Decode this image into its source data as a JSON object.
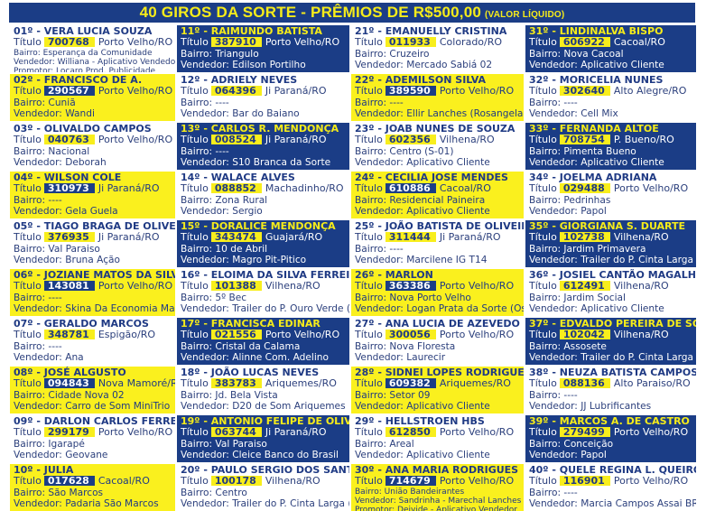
{
  "header": {
    "title": "40 GIROS DA SORTE - PRÊMIOS DE R$500,00",
    "subtitle": "(VALOR LÍQUIDO)"
  },
  "labels": {
    "titulo": "Título",
    "bairro": "Bairro:",
    "vendedor": "Vendedor:",
    "promotor": "Promotor:"
  },
  "colors": {
    "blue": "#1b3d86",
    "yellow": "#faf01e",
    "white": "#ffffff"
  },
  "winners": [
    {
      "rank": "01º - ",
      "name": "VERA LUCIA SOUZA",
      "titulo": "700768",
      "city": "Porto Velho/RO",
      "bairro": "Esperança da Comunidade",
      "vendedor": "Williana - Aplicativo Vendedor",
      "promotor": "Locaro Prod. Publicidade",
      "theme": "white"
    },
    {
      "rank": "02º - ",
      "name": "FRANCISCO DE A.",
      "titulo": "290567",
      "city": "Porto Velho/RO",
      "bairro": "Cuniã",
      "vendedor": "Wandi",
      "theme": "yellow"
    },
    {
      "rank": "03º - ",
      "name": "OLIVALDO CAMPOS",
      "titulo": "040763",
      "city": "Porto Velho/RO",
      "bairro": "Nacional",
      "vendedor": "Deborah",
      "theme": "white"
    },
    {
      "rank": "04º - ",
      "name": "WILSON COLE",
      "titulo": "310973",
      "city": "Ji Paraná/RO",
      "bairro": "----",
      "vendedor": "Gela Guela",
      "theme": "yellow"
    },
    {
      "rank": "05º - ",
      "name": "TIAGO BRAGA DE OLIVEIRA",
      "titulo": "376935",
      "city": "Ji Paraná/RO",
      "bairro": "Val Paraiso",
      "vendedor": "Bruna Ação",
      "theme": "white"
    },
    {
      "rank": "06º - ",
      "name": "JOZIANE MATOS DA SILVA",
      "titulo": "143081",
      "city": "Porto Velho/RO",
      "bairro": "----",
      "vendedor": "Skina Da Economia Maiara",
      "theme": "yellow"
    },
    {
      "rank": "07º - ",
      "name": "GERALDO MARCOS",
      "titulo": "348781",
      "city": "Espigão/RO",
      "bairro": "----",
      "vendedor": "Ana",
      "theme": "white"
    },
    {
      "rank": "08º - ",
      "name": "JOSÉ ALGUSTO",
      "titulo": "094843",
      "city": "Nova Mamoré/RO",
      "bairro": "Cidade Nova 02",
      "vendedor": "Carro de Som MiniTrio",
      "theme": "yellow"
    },
    {
      "rank": "09º - ",
      "name": "DARLON CARLOS FERREIRA",
      "titulo": "299179",
      "city": "Porto Velho/RO",
      "bairro": "Igarapé",
      "vendedor": "Geovane",
      "theme": "white"
    },
    {
      "rank": "10º - ",
      "name": "JULIA",
      "titulo": "017628",
      "city": "Cacoal/RO",
      "bairro": "São Marcos",
      "vendedor": "Padaria São Marcos",
      "theme": "yellow"
    },
    {
      "rank": "11º - ",
      "name": "RAIMUNDO BATISTA",
      "titulo": "387910",
      "city": "Porto Velho/RO",
      "bairro": "Triangulo",
      "vendedor": "Edilson Portilho",
      "theme": "blue"
    },
    {
      "rank": "12º - ",
      "name": "ADRIELY NEVES",
      "titulo": "064396",
      "city": "Ji Paraná/RO",
      "bairro": "----",
      "vendedor": "Bar do Baiano",
      "theme": "white"
    },
    {
      "rank": "13º - ",
      "name": "CARLOS R. MENDONÇA",
      "titulo": "008524",
      "city": "Ji Paraná/RO",
      "bairro": "----",
      "vendedor": "S10 Branca da Sorte",
      "theme": "blue"
    },
    {
      "rank": "14º - ",
      "name": "WALACE ALVES",
      "titulo": "088852",
      "city": "Machadinho/RO",
      "bairro": "Zona Rural",
      "vendedor": "Sergio",
      "theme": "white"
    },
    {
      "rank": "15º - ",
      "name": "DORALICE MENDONÇA",
      "titulo": "343474",
      "city": "Guajará/RO",
      "bairro": "10 de Abril",
      "vendedor": "Magro Pit-Pitico",
      "theme": "blue"
    },
    {
      "rank": "16º - ",
      "name": "ELOIMA DA SILVA FERREIRA",
      "titulo": "101388",
      "city": "Vilhena/RO",
      "bairro": "5º Bec",
      "vendedor": "Trailer do P. Ouro Verde ( Yaris)",
      "theme": "white"
    },
    {
      "rank": "17º - ",
      "name": "FRANCISCA EDINAR",
      "titulo": "021556",
      "city": "Porto Velho/RO",
      "bairro": "Cristal da Calama",
      "vendedor": "Alinne Com. Adelino",
      "theme": "blue"
    },
    {
      "rank": "18º - ",
      "name": "JOÃO LUCAS NEVES",
      "titulo": "383783",
      "city": "Ariquemes/RO",
      "bairro": "Jd. Bela Vista",
      "vendedor": "D20 de Som Ariquemes",
      "theme": "white"
    },
    {
      "rank": "19º - ",
      "name": "ANTONIO FELIPE DE OLIVEIRA",
      "titulo": "063744",
      "city": "Ji Paraná/RO",
      "bairro": "Val Paraiso",
      "vendedor": "Cleice Banco do Brasil",
      "theme": "blue"
    },
    {
      "rank": "20º - ",
      "name": "PAULO SERGIO DOS SANTOS",
      "titulo": "100178",
      "city": "Vilhena/RO",
      "bairro": "Centro",
      "vendedor": "Trailer do P. Cinta Larga ( Meiri)",
      "theme": "white"
    },
    {
      "rank": "21º - ",
      "name": "EMANUELLY CRISTINA",
      "titulo": "011933",
      "city": "Colorado/RO",
      "bairro": "Cruzeiro",
      "vendedor": "Mercado Sabiá 02",
      "theme": "white"
    },
    {
      "rank": "22º - ",
      "name": "ADEMILSON SILVA",
      "titulo": "389590",
      "city": "Porto Velho/RO",
      "bairro": "----",
      "vendedor": "Ellir Lanches (Rosangela)",
      "theme": "yellow"
    },
    {
      "rank": "23º - ",
      "name": "JOAB NUNES DE SOUZA",
      "titulo": "602356",
      "city": "Vilhena/RO",
      "bairro": "Centro (S-01)",
      "vendedor": "Aplicativo Cliente",
      "theme": "white"
    },
    {
      "rank": "24º - ",
      "name": "CECILIA JOSE MENDES",
      "titulo": "610886",
      "city": "Cacoal/RO",
      "bairro": "Residencial Paineira",
      "vendedor": "Aplicativo Cliente",
      "theme": "yellow"
    },
    {
      "rank": "25º - ",
      "name": "JOÃO BATISTA DE OLIVEIRA",
      "titulo": "311444",
      "city": "Ji Paraná/RO",
      "bairro": "----",
      "vendedor": "Marcilene IG T14",
      "theme": "white"
    },
    {
      "rank": "26º - ",
      "name": "MARLON",
      "titulo": "363386",
      "city": "Porto Velho/RO",
      "bairro": "Nova Porto Velho",
      "vendedor": "Logan Prata da Sorte (Osmar)",
      "theme": "yellow"
    },
    {
      "rank": "27º - ",
      "name": "ANA LUCIA DE AZEVEDO",
      "titulo": "300056",
      "city": "Porto Velho/RO",
      "bairro": "Nova Floresta",
      "vendedor": "Laurecir",
      "theme": "white"
    },
    {
      "rank": "28º - ",
      "name": "SIDNEI LOPES RODRIGUES",
      "titulo": "609382",
      "city": "Ariquemes/RO",
      "bairro": "Setor 09",
      "vendedor": "Aplicativo Cliente",
      "theme": "yellow"
    },
    {
      "rank": "29º - ",
      "name": "HELLSTROEN HBS",
      "titulo": "612850",
      "city": "Porto Velho/RO",
      "bairro": "Areal",
      "vendedor": "Aplicativo Cliente",
      "theme": "white"
    },
    {
      "rank": "30º - ",
      "name": "ANA MARIA RODRIGUES",
      "titulo": "714679",
      "city": "Porto Velho/RO",
      "bairro": "União Bandeirantes",
      "vendedor": "Sandrinha - Marechal Lanches",
      "promotor": "Deivide - Aplicativo Vendedor",
      "theme": "yellow"
    },
    {
      "rank": "31º - ",
      "name": "LINDINALVA BISPO",
      "titulo": "606922",
      "city": "Cacoal/RO",
      "bairro": "Nova Cacoal",
      "vendedor": "Aplicativo Cliente",
      "theme": "blue"
    },
    {
      "rank": "32º - ",
      "name": "MORICELIA NUNES",
      "titulo": "302640",
      "city": "Alto Alegre/RO",
      "bairro": "----",
      "vendedor": "Cell Mix",
      "theme": "white"
    },
    {
      "rank": "33º - ",
      "name": "FERNANDA ALTOE",
      "titulo": "708754",
      "city": "P. Bueno/RO",
      "bairro": "Pimenta Bueno",
      "vendedor": "Aplicativo Cliente",
      "theme": "blue"
    },
    {
      "rank": "34º - ",
      "name": "JOELMA ADRIANA",
      "titulo": "029488",
      "city": "Porto Velho/RO",
      "bairro": "Pedrinhas",
      "vendedor": "Papol",
      "theme": "white"
    },
    {
      "rank": "35º - ",
      "name": "GIORGIANA S. DUARTE",
      "titulo": "102738",
      "city": "Vilhena/RO",
      "bairro": "Jardim Primavera",
      "vendedor": "Trailer do P. Cinta Larga (Rosi)",
      "theme": "blue"
    },
    {
      "rank": "36º - ",
      "name": "JOSIEL CANTÃO MAGALHÃES",
      "titulo": "612491",
      "city": "Vilhena/RO",
      "bairro": "Jardim Social",
      "vendedor": "Aplicativo Cliente",
      "theme": "white"
    },
    {
      "rank": "37º - ",
      "name": "EDVALDO PEREIRA DE SOUZA",
      "titulo": "102042",
      "city": "Vilhena/RO",
      "bairro": "Assosete",
      "vendedor": "Trailer do P. Cinta Larga (Meiri)",
      "theme": "blue"
    },
    {
      "rank": "38º - ",
      "name": "NEUZA BATISTA CAMPOS",
      "titulo": "088136",
      "city": "Alto Paraiso/RO",
      "bairro": "----",
      "vendedor": "JJ Lubrificantes",
      "theme": "white"
    },
    {
      "rank": "39º - ",
      "name": "MARCOS A. DE CASTRO",
      "titulo": "279499",
      "city": "Porto Velho/RO",
      "bairro": "Conceição",
      "vendedor": "Papol",
      "theme": "blue"
    },
    {
      "rank": "40º - ",
      "name": "QUELE REGINA L. QUEIROZ",
      "titulo": "116901",
      "city": "Porto Velho/RO",
      "bairro": "----",
      "vendedor": "Marcia Campos Assai BR",
      "theme": "white"
    }
  ]
}
